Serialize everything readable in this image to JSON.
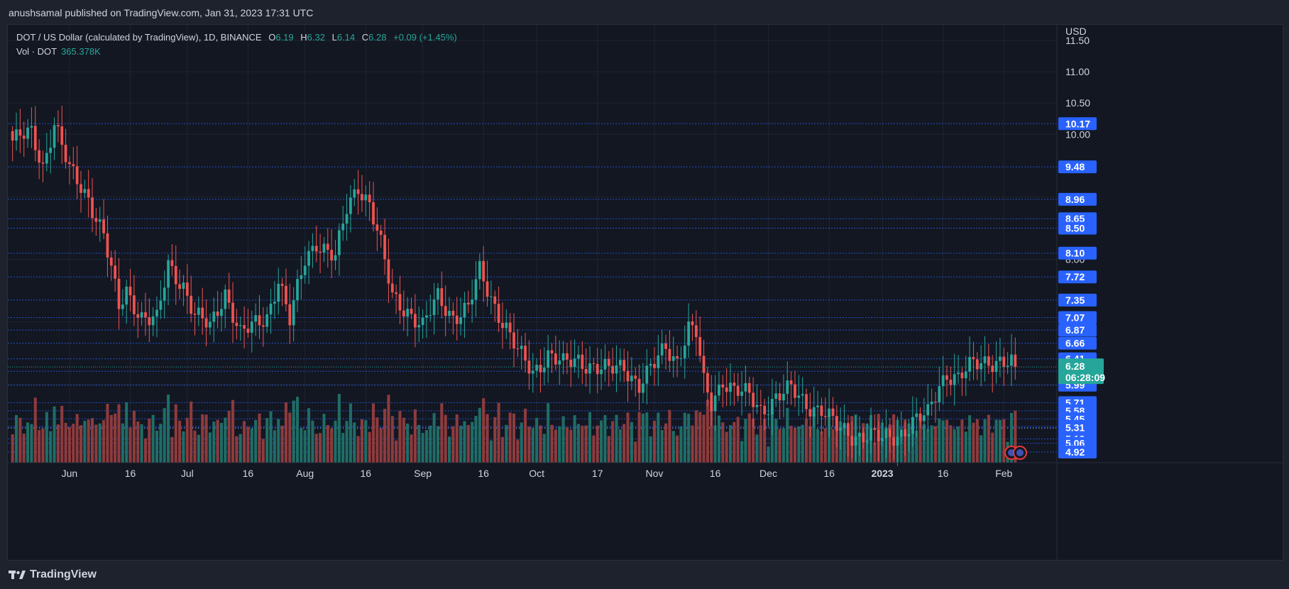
{
  "publisher": "anushsamal published on TradingView.com, Jan 31, 2023 17:31 UTC",
  "legend": {
    "symbol": "DOT / US Dollar (calculated by TradingView), 1D, BINANCE",
    "open_label": "O",
    "open": "6.19",
    "high_label": "H",
    "high": "6.32",
    "low_label": "L",
    "low": "6.14",
    "close_label": "C",
    "close": "6.28",
    "change": "+0.09 (+1.45%)",
    "vol_label": "Vol · DOT",
    "vol_value": "365.378K"
  },
  "footer": {
    "brand": "TradingView",
    "logo_icon": "tradingview-logo-icon"
  },
  "colors": {
    "up": "#26a69a",
    "down": "#ef5350",
    "up_vol": "#1f6d66",
    "down_vol": "#8e3b3d",
    "level_line": "#2962ff",
    "level_tag": "#2962ff",
    "price_tag": "#26a69a",
    "background": "#131722"
  },
  "chart_data": {
    "type": "candlestick",
    "symbol": "DOT/USD",
    "interval": "1D",
    "currency": "USD",
    "ylim": [
      4.75,
      11.75
    ],
    "y_tick_labels": [
      "11.50",
      "11.00",
      "10.50",
      "10.00",
      "8.00"
    ],
    "x_tick_labels": [
      "Jun",
      "16",
      "Jul",
      "16",
      "Aug",
      "16",
      "Sep",
      "16",
      "Oct",
      "17",
      "Nov",
      "16",
      "Dec",
      "16",
      "2023",
      "16",
      "Feb"
    ],
    "levels": [
      "10.17",
      "9.48",
      "8.96",
      "8.65",
      "8.50",
      "8.10",
      "7.72",
      "7.35",
      "7.07",
      "6.87",
      "6.66",
      "6.41",
      "6.21",
      "5.99",
      "5.71",
      "5.58",
      "5.45",
      "5.33",
      "5.31",
      "5.13",
      "5.06",
      "4.92"
    ],
    "current_price": "6.28",
    "countdown": "06:28:09",
    "dotted_line_value": 5.3,
    "close_anchors": [
      [
        0,
        9.9
      ],
      [
        5,
        10.0
      ],
      [
        8,
        9.5
      ],
      [
        11,
        10.2
      ],
      [
        15,
        9.4
      ],
      [
        20,
        9.0
      ],
      [
        24,
        8.4
      ],
      [
        28,
        7.2
      ],
      [
        30,
        7.5
      ],
      [
        34,
        7.1
      ],
      [
        38,
        7.0
      ],
      [
        41,
        7.9
      ],
      [
        45,
        7.6
      ],
      [
        48,
        7.1
      ],
      [
        52,
        6.9
      ],
      [
        56,
        7.5
      ],
      [
        60,
        6.8
      ],
      [
        63,
        6.9
      ],
      [
        67,
        7.1
      ],
      [
        70,
        7.7
      ],
      [
        73,
        7.0
      ],
      [
        77,
        8.0
      ],
      [
        80,
        8.3
      ],
      [
        85,
        8.0
      ],
      [
        88,
        8.8
      ],
      [
        91,
        9.2
      ],
      [
        94,
        8.9
      ],
      [
        97,
        8.2
      ],
      [
        100,
        7.4
      ],
      [
        104,
        7.2
      ],
      [
        108,
        6.9
      ],
      [
        112,
        7.4
      ],
      [
        116,
        7.1
      ],
      [
        120,
        7.2
      ],
      [
        123,
        7.8
      ],
      [
        126,
        7.4
      ],
      [
        130,
        6.9
      ],
      [
        133,
        6.5
      ],
      [
        137,
        6.2
      ],
      [
        141,
        6.5
      ],
      [
        145,
        6.3
      ],
      [
        149,
        6.4
      ],
      [
        153,
        6.3
      ],
      [
        157,
        6.2
      ],
      [
        161,
        6.3
      ],
      [
        165,
        6.0
      ],
      [
        169,
        6.3
      ],
      [
        172,
        6.6
      ],
      [
        175,
        6.4
      ],
      [
        178,
        6.9
      ],
      [
        180,
        6.8
      ],
      [
        182,
        6.0
      ],
      [
        184,
        5.7
      ],
      [
        187,
        6.1
      ],
      [
        190,
        5.9
      ],
      [
        194,
        5.8
      ],
      [
        197,
        5.6
      ],
      [
        201,
        5.8
      ],
      [
        205,
        5.9
      ],
      [
        209,
        5.7
      ],
      [
        213,
        5.6
      ],
      [
        217,
        5.3
      ],
      [
        221,
        5.2
      ],
      [
        225,
        5.2
      ],
      [
        229,
        5.1
      ],
      [
        233,
        5.2
      ],
      [
        237,
        5.4
      ],
      [
        241,
        5.5
      ],
      [
        244,
        6.0
      ],
      [
        246,
        6.2
      ],
      [
        249,
        6.1
      ],
      [
        253,
        6.3
      ],
      [
        257,
        6.4
      ],
      [
        260,
        6.38
      ],
      [
        264,
        6.28
      ]
    ],
    "volume_series_name": "Vol · DOT"
  }
}
